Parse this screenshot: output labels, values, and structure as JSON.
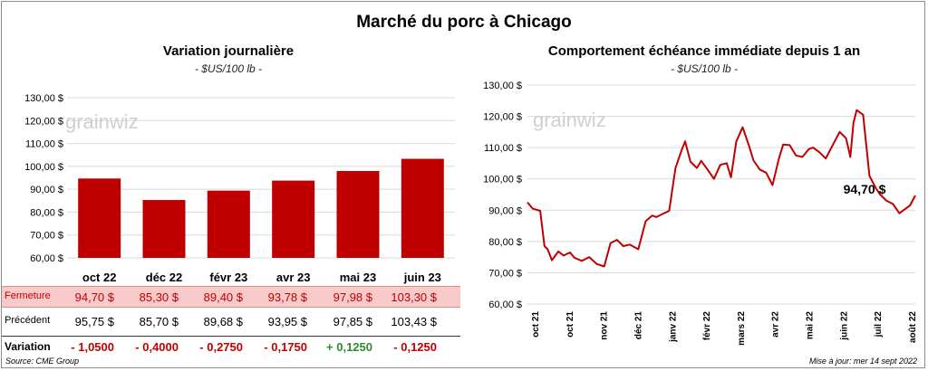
{
  "main_title": "Marché du porc à Chicago",
  "left": {
    "title": "Variation journalière",
    "unit": "- $US/100 lb -",
    "watermark": "grainwiz"
  },
  "right": {
    "title": "Comportement échéance immédiate depuis 1 an",
    "unit": "- $US/100 lb -",
    "watermark": "grainwiz",
    "last_label": "94,70 $"
  },
  "table": {
    "close_label": "Fermeture",
    "prev_label": "Précédent",
    "var_label": "Variation",
    "close": [
      "94,70  $",
      "85,30  $",
      "89,40  $",
      "93,78  $",
      "97,98  $",
      "103,30  $"
    ],
    "prev": [
      "95,75  $",
      "85,70  $",
      "89,68  $",
      "93,95  $",
      "97,85  $",
      "103,43  $"
    ],
    "var": [
      "- 1,0500",
      "- 0,4000",
      "- 0,2750",
      "- 0,1750",
      "+ 0,1250",
      "- 0,1250"
    ],
    "var_colors": [
      "#c00000",
      "#c00000",
      "#c00000",
      "#c00000",
      "#2e8b2e",
      "#c00000"
    ]
  },
  "source": "Source: CME Group",
  "updated": "Mise à jour: mer 14 sept 2022",
  "colors": {
    "bar": "#c00000",
    "line": "#c00000"
  },
  "chart_data": [
    {
      "type": "bar",
      "categories": [
        "oct 22",
        "déc 22",
        "févr 23",
        "avr 23",
        "mai 23",
        "juin 23"
      ],
      "values": [
        94.7,
        85.3,
        89.4,
        93.78,
        97.98,
        103.3
      ],
      "ylim": [
        60,
        130
      ],
      "yticks": [
        "60,00 $",
        "70,00 $",
        "80,00 $",
        "90,00 $",
        "100,00 $",
        "110,00 $",
        "120,00 $",
        "130,00 $"
      ],
      "grid": true
    },
    {
      "type": "line",
      "ylim": [
        60,
        130
      ],
      "yticks": [
        "60,00 $",
        "70,00 $",
        "80,00 $",
        "90,00 $",
        "100,00 $",
        "110,00 $",
        "120,00 $",
        "130,00 $"
      ],
      "xticks": [
        "oct 21",
        "oct 21",
        "nov 21",
        "déc 21",
        "janv 22",
        "févr 22",
        "mars 22",
        "avr 22",
        "mai 22",
        "juin 22",
        "juil 22",
        "août 22"
      ],
      "x": [
        "2021-09-15",
        "2021-09-20",
        "2021-09-27",
        "2021-10-01",
        "2021-10-04",
        "2021-10-08",
        "2021-10-14",
        "2021-10-19",
        "2021-10-25",
        "2021-10-29",
        "2021-11-05",
        "2021-11-12",
        "2021-11-19",
        "2021-11-26",
        "2021-12-02",
        "2021-12-08",
        "2021-12-14",
        "2021-12-20",
        "2021-12-28",
        "2022-01-04",
        "2022-01-10",
        "2022-01-14",
        "2022-01-20",
        "2022-01-26",
        "2022-02-01",
        "2022-02-07",
        "2022-02-10",
        "2022-02-15",
        "2022-02-21",
        "2022-02-25",
        "2022-03-03",
        "2022-03-09",
        "2022-03-15",
        "2022-03-21",
        "2022-03-25",
        "2022-03-30",
        "2022-04-05",
        "2022-04-11",
        "2022-04-15",
        "2022-04-21",
        "2022-04-27",
        "2022-05-03",
        "2022-05-09",
        "2022-05-13",
        "2022-05-19",
        "2022-05-25",
        "2022-05-31",
        "2022-06-06",
        "2022-06-10",
        "2022-06-16",
        "2022-06-22",
        "2022-06-28",
        "2022-07-05",
        "2022-07-11",
        "2022-07-15",
        "2022-07-18",
        "2022-07-21",
        "2022-07-27",
        "2022-08-02",
        "2022-08-08",
        "2022-08-12",
        "2022-08-18",
        "2022-08-24",
        "2022-08-30",
        "2022-09-05",
        "2022-09-09",
        "2022-09-14"
      ],
      "values": [
        92.5,
        90.5,
        89.8,
        78.5,
        77.5,
        74.0,
        76.8,
        75.5,
        76.5,
        74.8,
        73.8,
        75.0,
        72.8,
        72.0,
        79.5,
        80.5,
        78.5,
        79.0,
        77.5,
        86.5,
        88.3,
        87.8,
        88.8,
        89.8,
        103.5,
        109.5,
        112.0,
        105.5,
        103.5,
        105.8,
        103.0,
        100.0,
        104.5,
        105.0,
        100.5,
        112.0,
        116.5,
        110.5,
        106.0,
        103.0,
        102.0,
        98.0,
        106.5,
        111.0,
        110.8,
        107.5,
        107.0,
        109.5,
        110.0,
        108.5,
        106.5,
        110.5,
        115.0,
        113.0,
        107.0,
        118.0,
        122.0,
        120.5,
        101.0,
        97.0,
        95.0,
        93.0,
        92.0,
        89.0,
        90.5,
        91.5,
        94.7
      ],
      "grid": true
    }
  ]
}
